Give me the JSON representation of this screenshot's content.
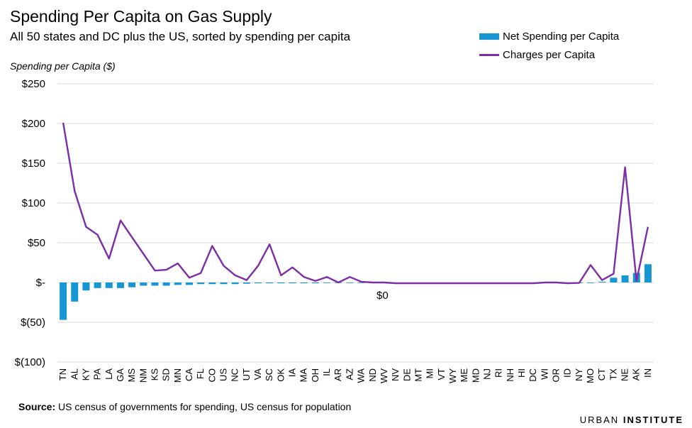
{
  "header": {
    "title": "Spending Per Capita on Gas Supply",
    "subtitle": "All 50 states and DC plus the US, sorted by spending per capita"
  },
  "legend": {
    "bar_label": "Net Spending per Capita",
    "line_label": "Charges per Capita"
  },
  "footer": {
    "source_bold": "Source:",
    "source_text": " US census of governments for spending, US census for population",
    "brand_part1": "URBAN",
    "brand_part2": "INSTITUTE"
  },
  "colors": {
    "bar": "#1696d2",
    "line": "#7b2ea5",
    "grid": "#d9d9d9"
  },
  "chart_data": {
    "type": "bar",
    "ylabel": "Spending per Capita ($)",
    "ylim": [
      -100,
      250
    ],
    "yticks": [
      250,
      200,
      150,
      100,
      50,
      0,
      -50,
      -100
    ],
    "ytick_labels": [
      "$250",
      "$200",
      "$150",
      "$100",
      "$50",
      "$-",
      "$(50)",
      "$(100)"
    ],
    "zero_annotation": "$0",
    "grid": true,
    "legend_position": "top-right",
    "categories": [
      "TN",
      "AL",
      "KY",
      "PA",
      "LA",
      "GA",
      "MS",
      "NM",
      "KS",
      "SD",
      "MN",
      "CA",
      "FL",
      "CO",
      "US",
      "NC",
      "UT",
      "VA",
      "SC",
      "OK",
      "IA",
      "MA",
      "OH",
      "IL",
      "AR",
      "AZ",
      "WA",
      "ND",
      "WV",
      "NV",
      "DE",
      "MT",
      "MI",
      "VT",
      "WY",
      "ME",
      "MD",
      "NJ",
      "RI",
      "NH",
      "HI",
      "DC",
      "WI",
      "OR",
      "ID",
      "NY",
      "MO",
      "CT",
      "TX",
      "NE",
      "AK",
      "IN"
    ],
    "series": [
      {
        "name": "Net Spending per Capita",
        "kind": "bar",
        "values": [
          -47,
          -24,
          -10,
          -7,
          -7,
          -7,
          -6,
          -4,
          -4,
          -4,
          -3,
          -3,
          -2,
          -2,
          -2,
          -2,
          -1.5,
          -1,
          -1,
          -1,
          -1,
          -1,
          -1,
          -0.5,
          -0.5,
          -0.3,
          0,
          0,
          0,
          0,
          0,
          0,
          0,
          0,
          0,
          0,
          0,
          0,
          0,
          0,
          0,
          0,
          0,
          0,
          0,
          0,
          0,
          1,
          6,
          9,
          12,
          23
        ]
      },
      {
        "name": "Charges per Capita",
        "kind": "line",
        "values": [
          201,
          115,
          70,
          60,
          30,
          78,
          57,
          36,
          15,
          16,
          24,
          6,
          12,
          46,
          21,
          9,
          3,
          21,
          48,
          9,
          19,
          7,
          2,
          7,
          0,
          7,
          1,
          0,
          0,
          -1,
          -1,
          -1,
          -1,
          -1,
          -1,
          -1,
          -1,
          -1,
          -1,
          -1,
          -1,
          -1,
          0,
          0,
          -1,
          -0.5,
          22,
          3,
          11,
          145,
          2,
          70
        ]
      }
    ]
  }
}
